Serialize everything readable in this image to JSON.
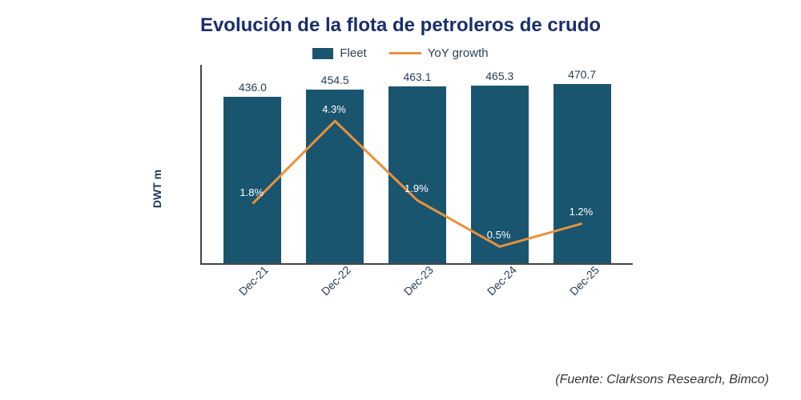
{
  "title": "Evolución de la flota de petroleros de crudo",
  "title_color": "#1a2e6e",
  "title_fontsize": 24,
  "source": "(Fuente: Clarksons Research, Bimco)",
  "source_color": "#333333",
  "chart": {
    "type": "bar+line",
    "ylabel": "DWT m",
    "ylabel_color": "#1a3a5a",
    "bar_color": "#1a5570",
    "line_color": "#e8913a",
    "line_width": 3,
    "text_color": "#2a3f55",
    "bar_label_color": "#2a3f55",
    "growth_label_color": "#ffffff",
    "background": "#ffffff",
    "categories": [
      "Dec-21",
      "Dec-22",
      "Dec-23",
      "Dec-24",
      "Dec-25"
    ],
    "bar_values": [
      436.0,
      454.5,
      463.1,
      465.3,
      470.7
    ],
    "bar_value_labels": [
      "436.0",
      "454.5",
      "463.1",
      "465.3",
      "470.7"
    ],
    "growth_values": [
      1.8,
      4.3,
      1.9,
      0.5,
      1.2
    ],
    "growth_labels": [
      "1.8%",
      "4.3%",
      "1.9%",
      "0.5%",
      "1.2%"
    ],
    "bar_ylim": [
      0,
      520
    ],
    "growth_ylim": [
      0,
      6.0
    ],
    "legend": {
      "fleet": "Fleet",
      "growth": "YoY growth"
    }
  }
}
